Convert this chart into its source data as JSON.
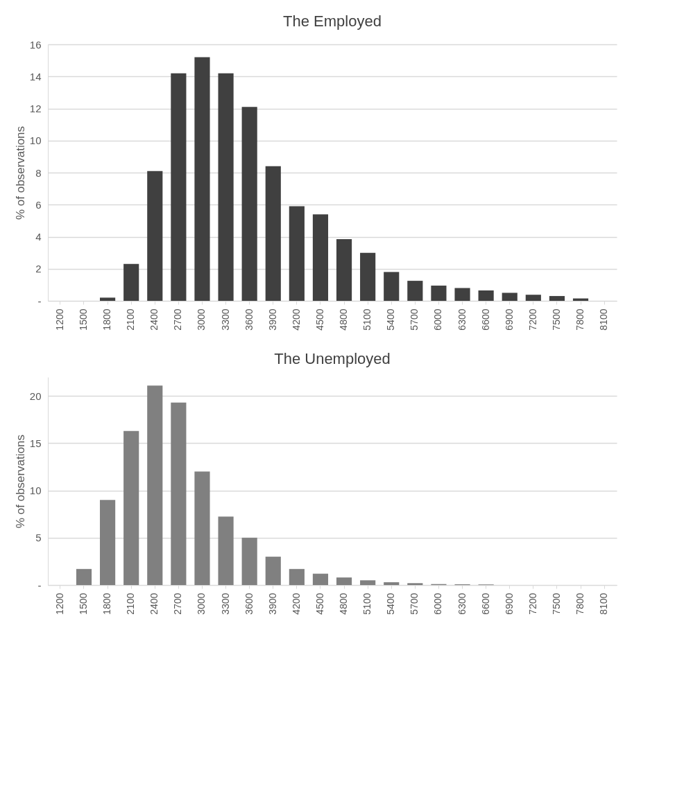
{
  "chart_data": [
    {
      "type": "bar",
      "title": "The Employed",
      "ylabel": "% of observations",
      "categories": [
        "1200",
        "1500",
        "1800",
        "2100",
        "2400",
        "2700",
        "3000",
        "3300",
        "3600",
        "3900",
        "4200",
        "4500",
        "4800",
        "5100",
        "5400",
        "5700",
        "6000",
        "6300",
        "6600",
        "6900",
        "7200",
        "7500",
        "7800",
        "8100"
      ],
      "values": [
        0,
        0,
        0.2,
        2.3,
        8.1,
        14.2,
        15.2,
        14.2,
        12.1,
        8.4,
        5.9,
        5.4,
        3.85,
        3.0,
        1.8,
        1.25,
        0.95,
        0.8,
        0.65,
        0.5,
        0.38,
        0.3,
        0.15,
        0
      ],
      "color": "#404040",
      "ylim": [
        0,
        16
      ],
      "yticks": [
        {
          "value": 0,
          "label": "-"
        },
        2,
        4,
        6,
        8,
        10,
        12,
        14,
        16
      ],
      "grid": "y"
    },
    {
      "type": "bar",
      "title": "The Unemployed",
      "ylabel": "% of observations",
      "categories": [
        "1200",
        "1500",
        "1800",
        "2100",
        "2400",
        "2700",
        "3000",
        "3300",
        "3600",
        "3900",
        "4200",
        "4500",
        "4800",
        "5100",
        "5400",
        "5700",
        "6000",
        "6300",
        "6600",
        "6900",
        "7200",
        "7500",
        "7800",
        "8100"
      ],
      "values": [
        0,
        1.7,
        9.0,
        16.3,
        21.1,
        19.3,
        12.0,
        7.25,
        5.0,
        3.0,
        1.7,
        1.2,
        0.8,
        0.5,
        0.3,
        0.2,
        0.1,
        0.08,
        0.06,
        null,
        null,
        null,
        null,
        0
      ],
      "color": "#808080",
      "ylim": [
        0,
        22
      ],
      "yticks": [
        {
          "value": 0,
          "label": "-"
        },
        5,
        10,
        15,
        20
      ],
      "grid": "y"
    }
  ]
}
